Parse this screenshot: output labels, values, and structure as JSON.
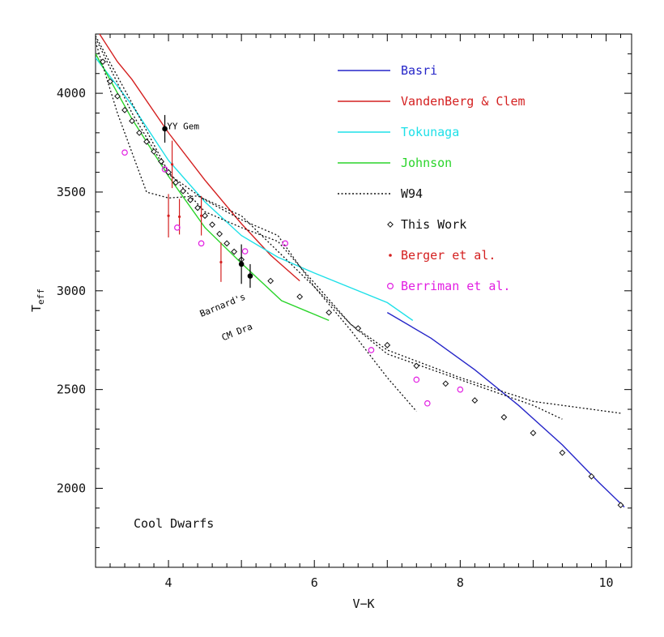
{
  "chart_data": {
    "type": "line",
    "title": "",
    "xlabel": "V−K",
    "ylabel_main": "T",
    "ylabel_sub": "eff",
    "xlim": [
      3.0,
      10.35
    ],
    "ylim": [
      1600,
      4300
    ],
    "xticks": [
      4,
      6,
      8,
      10
    ],
    "yticks": [
      2000,
      2500,
      3000,
      3500,
      4000
    ],
    "plot_label": "Cool Dwarfs",
    "grid": false,
    "legend_position": "top-right",
    "star_labels": [
      {
        "text": "YY Gem",
        "x": 3.98,
        "y": 3835
      },
      {
        "text": "Barnard's",
        "x": 4.45,
        "y": 2900
      },
      {
        "text": "CM Dra",
        "x": 4.75,
        "y": 2870
      }
    ],
    "series": [
      {
        "name": "Basri",
        "style": "line",
        "color": "#2525c8",
        "points": [
          [
            7.0,
            2890
          ],
          [
            7.6,
            2760
          ],
          [
            8.2,
            2600
          ],
          [
            8.8,
            2420
          ],
          [
            9.4,
            2220
          ],
          [
            9.9,
            2030
          ],
          [
            10.25,
            1905
          ]
        ]
      },
      {
        "name": "VandenBerg & Clem",
        "style": "line",
        "color": "#d42020",
        "points": [
          [
            3.02,
            4320
          ],
          [
            3.3,
            4160
          ],
          [
            3.5,
            4070
          ],
          [
            4.0,
            3800
          ],
          [
            4.5,
            3560
          ],
          [
            5.0,
            3340
          ],
          [
            5.4,
            3180
          ],
          [
            5.8,
            3050
          ]
        ]
      },
      {
        "name": "Tokunaga",
        "style": "line",
        "color": "#1ee0e8",
        "points": [
          [
            3.0,
            4180
          ],
          [
            3.5,
            3940
          ],
          [
            4.0,
            3660
          ],
          [
            4.5,
            3450
          ],
          [
            5.0,
            3280
          ],
          [
            5.5,
            3170
          ],
          [
            6.0,
            3090
          ],
          [
            7.0,
            2940
          ],
          [
            7.35,
            2850
          ]
        ]
      },
      {
        "name": "Johnson",
        "style": "line",
        "color": "#2ad42a",
        "points": [
          [
            3.0,
            4200
          ],
          [
            3.5,
            3870
          ],
          [
            4.0,
            3580
          ],
          [
            4.5,
            3320
          ],
          [
            5.0,
            3140
          ],
          [
            5.55,
            2950
          ],
          [
            6.2,
            2850
          ]
        ]
      },
      {
        "name": "W94",
        "style": "dotted",
        "color": "#111111",
        "points": [
          [
            3.0,
            4260
          ],
          [
            3.3,
            3900
          ],
          [
            3.7,
            3500
          ],
          [
            4.0,
            3470
          ],
          [
            4.4,
            3480
          ],
          [
            5.0,
            3380
          ],
          [
            5.5,
            3200
          ],
          [
            6.0,
            3020
          ],
          [
            6.5,
            2800
          ],
          [
            7.0,
            2560
          ],
          [
            7.4,
            2390
          ]
        ]
      },
      {
        "name": "",
        "style": "dotted",
        "color": "#111111",
        "points": [
          [
            3.0,
            4280
          ],
          [
            3.5,
            3900
          ],
          [
            4.0,
            3590
          ],
          [
            4.5,
            3460
          ],
          [
            5.0,
            3360
          ],
          [
            5.5,
            3280
          ],
          [
            6.0,
            3020
          ],
          [
            6.5,
            2830
          ],
          [
            7.0,
            2700
          ],
          [
            8.0,
            2560
          ],
          [
            9.0,
            2440
          ],
          [
            10.2,
            2380
          ]
        ]
      },
      {
        "name": "",
        "style": "dotted",
        "color": "#111111",
        "points": [
          [
            3.0,
            4290
          ],
          [
            3.5,
            3950
          ],
          [
            4.0,
            3600
          ],
          [
            4.5,
            3400
          ],
          [
            5.0,
            3320
          ],
          [
            5.5,
            3250
          ],
          [
            6.0,
            3040
          ],
          [
            6.5,
            2830
          ],
          [
            7.0,
            2680
          ],
          [
            8.0,
            2550
          ],
          [
            9.0,
            2420
          ],
          [
            9.4,
            2350
          ]
        ]
      }
    ],
    "this_work": {
      "name": "This Work",
      "color": "#111111",
      "points": [
        [
          3.1,
          4160
        ],
        [
          3.2,
          4060
        ],
        [
          3.3,
          3985
        ],
        [
          3.4,
          3915
        ],
        [
          3.5,
          3860
        ],
        [
          3.6,
          3800
        ],
        [
          3.7,
          3755
        ],
        [
          3.8,
          3705
        ],
        [
          3.9,
          3655
        ],
        [
          4.0,
          3600
        ],
        [
          4.1,
          3548
        ],
        [
          4.2,
          3505
        ],
        [
          4.3,
          3460
        ],
        [
          4.4,
          3420
        ],
        [
          4.5,
          3380
        ],
        [
          4.6,
          3335
        ],
        [
          4.7,
          3288
        ],
        [
          4.8,
          3240
        ],
        [
          4.9,
          3198
        ],
        [
          5.0,
          3158
        ],
        [
          5.4,
          3050
        ],
        [
          5.8,
          2970
        ],
        [
          6.2,
          2890
        ],
        [
          6.6,
          2810
        ],
        [
          7.0,
          2725
        ],
        [
          7.4,
          2620
        ],
        [
          7.8,
          2530
        ],
        [
          8.2,
          2445
        ],
        [
          8.6,
          2360
        ],
        [
          9.0,
          2280
        ],
        [
          9.4,
          2180
        ],
        [
          9.8,
          2060
        ],
        [
          10.2,
          1915
        ]
      ]
    },
    "berger": {
      "name": "Berger et al.",
      "color": "#d42020",
      "points": [
        [
          4.0,
          3380,
          110
        ],
        [
          4.05,
          3640,
          120
        ],
        [
          4.15,
          3375,
          90
        ],
        [
          4.45,
          3380,
          100
        ],
        [
          4.72,
          3145,
          100
        ]
      ]
    },
    "berriman": {
      "name": "Berriman et al.",
      "color": "#e21ee2",
      "points": [
        [
          3.4,
          3700
        ],
        [
          3.95,
          3615
        ],
        [
          4.12,
          3320
        ],
        [
          4.45,
          3240
        ],
        [
          5.05,
          3200
        ],
        [
          5.6,
          3240
        ],
        [
          6.78,
          2700
        ],
        [
          7.4,
          2550
        ],
        [
          7.55,
          2430
        ],
        [
          8.0,
          2500
        ]
      ]
    },
    "named_stars": {
      "color": "#000000",
      "points": [
        [
          3.95,
          3820,
          70
        ],
        [
          5.0,
          3135,
          100
        ],
        [
          5.12,
          3075,
          60
        ]
      ]
    }
  }
}
